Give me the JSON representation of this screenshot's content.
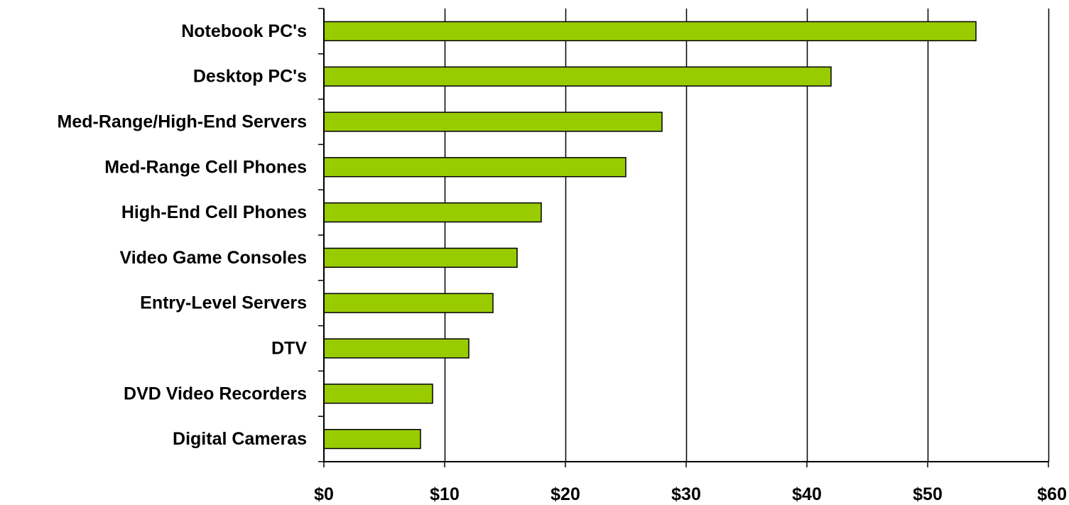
{
  "chart_data": {
    "type": "bar",
    "orientation": "horizontal",
    "categories": [
      "Notebook PC's",
      "Desktop PC's",
      "Med-Range/High-End Servers",
      "Med-Range Cell Phones",
      "High-End Cell Phones",
      "Video Game Consoles",
      "Entry-Level Servers",
      "DTV",
      "DVD Video Recorders",
      "Digital Cameras"
    ],
    "values": [
      54,
      42,
      28,
      25,
      18,
      16,
      14,
      12,
      9,
      8
    ],
    "title": "",
    "xlabel": "",
    "ylabel": "",
    "xlim": [
      0,
      60
    ],
    "x_ticks": [
      0,
      10,
      20,
      30,
      40,
      50,
      60
    ],
    "x_tick_labels": [
      "$0",
      "$10",
      "$20",
      "$30",
      "$40",
      "$50",
      "$60"
    ],
    "grid": "vertical",
    "legend": "none",
    "colors": {
      "bar_fill": "#99cc00",
      "bar_stroke": "#000000",
      "grid": "#000000",
      "axis": "#000000",
      "background": "#ffffff"
    }
  }
}
